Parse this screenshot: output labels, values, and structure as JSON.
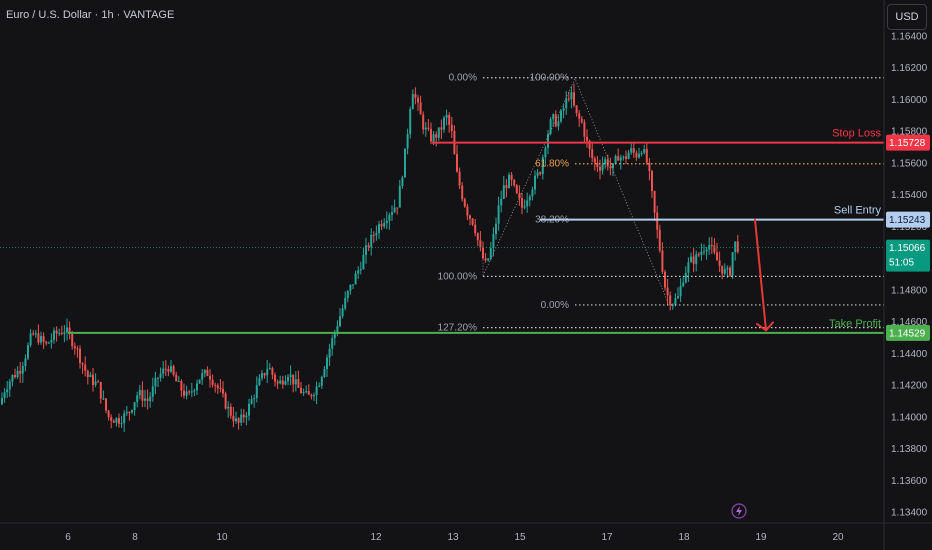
{
  "header": {
    "title": "Euro / U.S. Dollar · 1h · VANTAGE",
    "currency": "USD"
  },
  "colors": {
    "background": "#131316",
    "up": "#26a69a",
    "down": "#ef5350",
    "stop_loss": "#f23645",
    "sell_entry": "#b2cdf0",
    "take_profit": "#4caf50",
    "fib_orange": "#f0a04b",
    "current_price": "#089981",
    "arrow": "#e53935"
  },
  "icons": {
    "bottom": "lightning-icon"
  },
  "chart_data": {
    "type": "candlestick",
    "title": "Euro / U.S. Dollar · 1h · VANTAGE",
    "ylim": [
      1.133,
      1.165
    ],
    "y_ticks": [
      "1.16400",
      "1.16200",
      "1.16000",
      "1.15800",
      "1.15600",
      "1.15400",
      "1.15200",
      "1.15000",
      "1.14800",
      "1.14600",
      "1.14400",
      "1.14200",
      "1.14000",
      "1.13800",
      "1.13600",
      "1.13400"
    ],
    "x_ticks": [
      "6",
      "8",
      "10",
      "12",
      "13",
      "15",
      "17",
      "18",
      "19",
      "20"
    ],
    "levels": [
      {
        "name": "Stop Loss",
        "price": "1.15728"
      },
      {
        "name": "Sell Entry",
        "price": "1.15243"
      },
      {
        "name": "Take Profit",
        "price": "1.14529"
      }
    ],
    "current_price": {
      "value": "1.15066",
      "countdown": "51:05"
    },
    "fib_left_labels": [
      "0.00%",
      "100.00%",
      "127.20%"
    ],
    "fib_right_labels": [
      "100.00%",
      "61.80%",
      "38.20%",
      "0.00%"
    ],
    "trajectory": [
      [
        0,
        1.1408
      ],
      [
        5,
        1.1418
      ],
      [
        12,
        1.1425
      ],
      [
        20,
        1.143
      ],
      [
        26,
        1.144
      ],
      [
        32,
        1.1452
      ],
      [
        38,
        1.145
      ],
      [
        46,
        1.1445
      ],
      [
        55,
        1.1452
      ],
      [
        65,
        1.1455
      ],
      [
        75,
        1.1445
      ],
      [
        88,
        1.1425
      ],
      [
        98,
        1.142
      ],
      [
        108,
        1.14
      ],
      [
        118,
        1.1398
      ],
      [
        128,
        1.1402
      ],
      [
        138,
        1.1415
      ],
      [
        148,
        1.141
      ],
      [
        158,
        1.1425
      ],
      [
        168,
        1.1432
      ],
      [
        178,
        1.142
      ],
      [
        188,
        1.1412
      ],
      [
        198,
        1.1424
      ],
      [
        208,
        1.1428
      ],
      [
        218,
        1.1418
      ],
      [
        228,
        1.1405
      ],
      [
        238,
        1.1395
      ],
      [
        248,
        1.1405
      ],
      [
        258,
        1.142
      ],
      [
        268,
        1.1432
      ],
      [
        278,
        1.142
      ],
      [
        288,
        1.1428
      ],
      [
        298,
        1.1418
      ],
      [
        308,
        1.1412
      ],
      [
        318,
        1.142
      ],
      [
        328,
        1.144
      ],
      [
        338,
        1.146
      ],
      [
        348,
        1.1478
      ],
      [
        358,
        1.1492
      ],
      [
        368,
        1.1508
      ],
      [
        378,
        1.152
      ],
      [
        388,
        1.1528
      ],
      [
        398,
        1.1535
      ],
      [
        406,
        1.157
      ],
      [
        412,
        1.1608
      ],
      [
        418,
        1.1595
      ],
      [
        424,
        1.1582
      ],
      [
        432,
        1.1575
      ],
      [
        440,
        1.158
      ],
      [
        446,
        1.159
      ],
      [
        452,
        1.1578
      ],
      [
        456,
        1.1555
      ],
      [
        462,
        1.154
      ],
      [
        468,
        1.1528
      ],
      [
        474,
        1.1522
      ],
      [
        480,
        1.1505
      ],
      [
        486,
        1.1495
      ],
      [
        492,
        1.1508
      ],
      [
        498,
        1.153
      ],
      [
        504,
        1.1545
      ],
      [
        510,
        1.155
      ],
      [
        516,
        1.154
      ],
      [
        522,
        1.1532
      ],
      [
        528,
        1.154
      ],
      [
        534,
        1.1548
      ],
      [
        540,
        1.1555
      ],
      [
        546,
        1.1575
      ],
      [
        552,
        1.1588
      ],
      [
        558,
        1.1585
      ],
      [
        564,
        1.1595
      ],
      [
        570,
        1.1605
      ],
      [
        576,
        1.159
      ],
      [
        582,
        1.1585
      ],
      [
        588,
        1.157
      ],
      [
        594,
        1.156
      ],
      [
        600,
        1.1558
      ],
      [
        606,
        1.1562
      ],
      [
        612,
        1.1555
      ],
      [
        618,
        1.1565
      ],
      [
        624,
        1.1562
      ],
      [
        630,
        1.1568
      ],
      [
        636,
        1.1565
      ],
      [
        642,
        1.157
      ],
      [
        648,
        1.1558
      ],
      [
        654,
        1.153
      ],
      [
        660,
        1.1505
      ],
      [
        666,
        1.1478
      ],
      [
        672,
        1.1472
      ],
      [
        678,
        1.1475
      ],
      [
        684,
        1.149
      ],
      [
        690,
        1.1498
      ],
      [
        696,
        1.15
      ],
      [
        702,
        1.1505
      ],
      [
        708,
        1.151
      ],
      [
        714,
        1.1502
      ],
      [
        720,
        1.1495
      ],
      [
        726,
        1.149
      ],
      [
        730,
        1.1492
      ],
      [
        734,
        1.151
      ],
      [
        738,
        1.1507
      ]
    ]
  }
}
